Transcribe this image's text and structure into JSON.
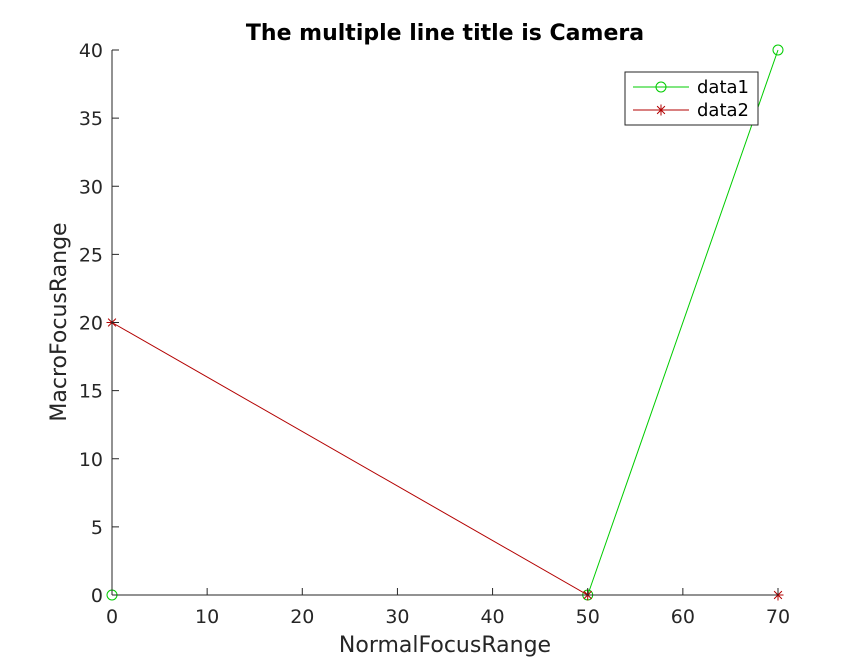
{
  "chart_data": {
    "type": "line",
    "title": "The multiple line title is Camera",
    "xlabel": "NormalFocusRange",
    "ylabel": "MacroFocusRange",
    "xlim": [
      0,
      70
    ],
    "ylim": [
      0,
      40
    ],
    "xticks": [
      0,
      10,
      20,
      30,
      40,
      50,
      60,
      70
    ],
    "yticks": [
      0,
      5,
      10,
      15,
      20,
      25,
      30,
      35,
      40
    ],
    "grid": false,
    "legend_position": "top-right",
    "series": [
      {
        "name": "data1",
        "color": "#00cc00",
        "marker": "circle",
        "x": [
          0,
          50,
          70
        ],
        "y": [
          0,
          0,
          40
        ]
      },
      {
        "name": "data2",
        "color": "#b30000",
        "marker": "asterisk",
        "x": [
          0,
          50,
          70
        ],
        "y": [
          20,
          0,
          0
        ]
      }
    ]
  }
}
